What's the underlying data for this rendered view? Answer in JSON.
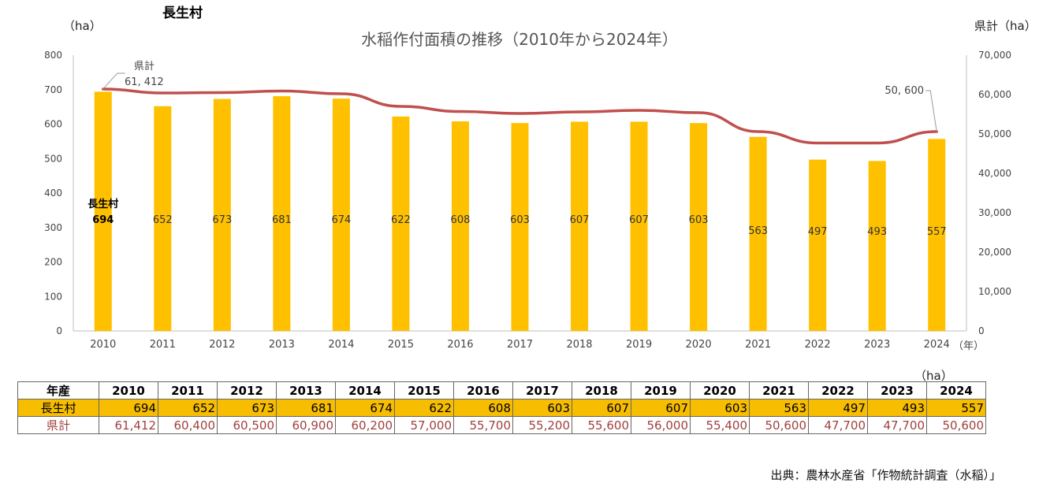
{
  "page_title": "長生村",
  "unit_label_left": "（ha）",
  "unit_label_right": "県計（ha）",
  "table_unit": "（ha）",
  "source": "出典：農林水産省「作物統計調査（水稲）」",
  "colors": {
    "bar": "#ffc000",
    "line": "#c0504d"
  },
  "chart_data": {
    "type": "bar",
    "title": "水稲作付面積の推移（2010年から2024年）",
    "xlabel": "（年）",
    "categories": [
      "2010",
      "2011",
      "2012",
      "2013",
      "2014",
      "2015",
      "2016",
      "2017",
      "2018",
      "2019",
      "2020",
      "2021",
      "2022",
      "2023",
      "2024"
    ],
    "y_left": {
      "lim": [
        0,
        800
      ],
      "ticks": [
        "0",
        "100",
        "200",
        "300",
        "400",
        "500",
        "600",
        "700",
        "800"
      ]
    },
    "y_right": {
      "lim": [
        0,
        70000
      ],
      "ticks": [
        "0",
        "10,000",
        "20,000",
        "30,000",
        "40,000",
        "50,000",
        "60,000",
        "70,000"
      ]
    },
    "grid": false,
    "series": [
      {
        "name": "長生村",
        "type": "bar",
        "axis": "left",
        "values": [
          694,
          652,
          673,
          681,
          674,
          622,
          608,
          603,
          607,
          607,
          603,
          563,
          497,
          493,
          557
        ]
      },
      {
        "name": "県計",
        "type": "line",
        "axis": "right",
        "values": [
          61412,
          60400,
          60500,
          60900,
          60200,
          57000,
          55700,
          55200,
          55600,
          56000,
          55400,
          50600,
          47700,
          47700,
          50600
        ]
      }
    ],
    "annotations": {
      "first_bar_series_label": "長生村",
      "first_bar_value_label": "694",
      "start_line_label": "県計",
      "start_line_value": "61, 412",
      "end_line_value": "50, 600"
    }
  },
  "table": {
    "header_label": "年産",
    "years": [
      "2010",
      "2011",
      "2012",
      "2013",
      "2014",
      "2015",
      "2016",
      "2017",
      "2018",
      "2019",
      "2020",
      "2021",
      "2022",
      "2023",
      "2024"
    ],
    "rows": [
      {
        "label": "長生村",
        "values": [
          "694",
          "652",
          "673",
          "681",
          "674",
          "622",
          "608",
          "603",
          "607",
          "607",
          "603",
          "563",
          "497",
          "493",
          "557"
        ]
      },
      {
        "label": "県計",
        "values": [
          "61,412",
          "60,400",
          "60,500",
          "60,900",
          "60,200",
          "57,000",
          "55,700",
          "55,200",
          "55,600",
          "56,000",
          "55,400",
          "50,600",
          "47,700",
          "47,700",
          "50,600"
        ]
      }
    ]
  }
}
